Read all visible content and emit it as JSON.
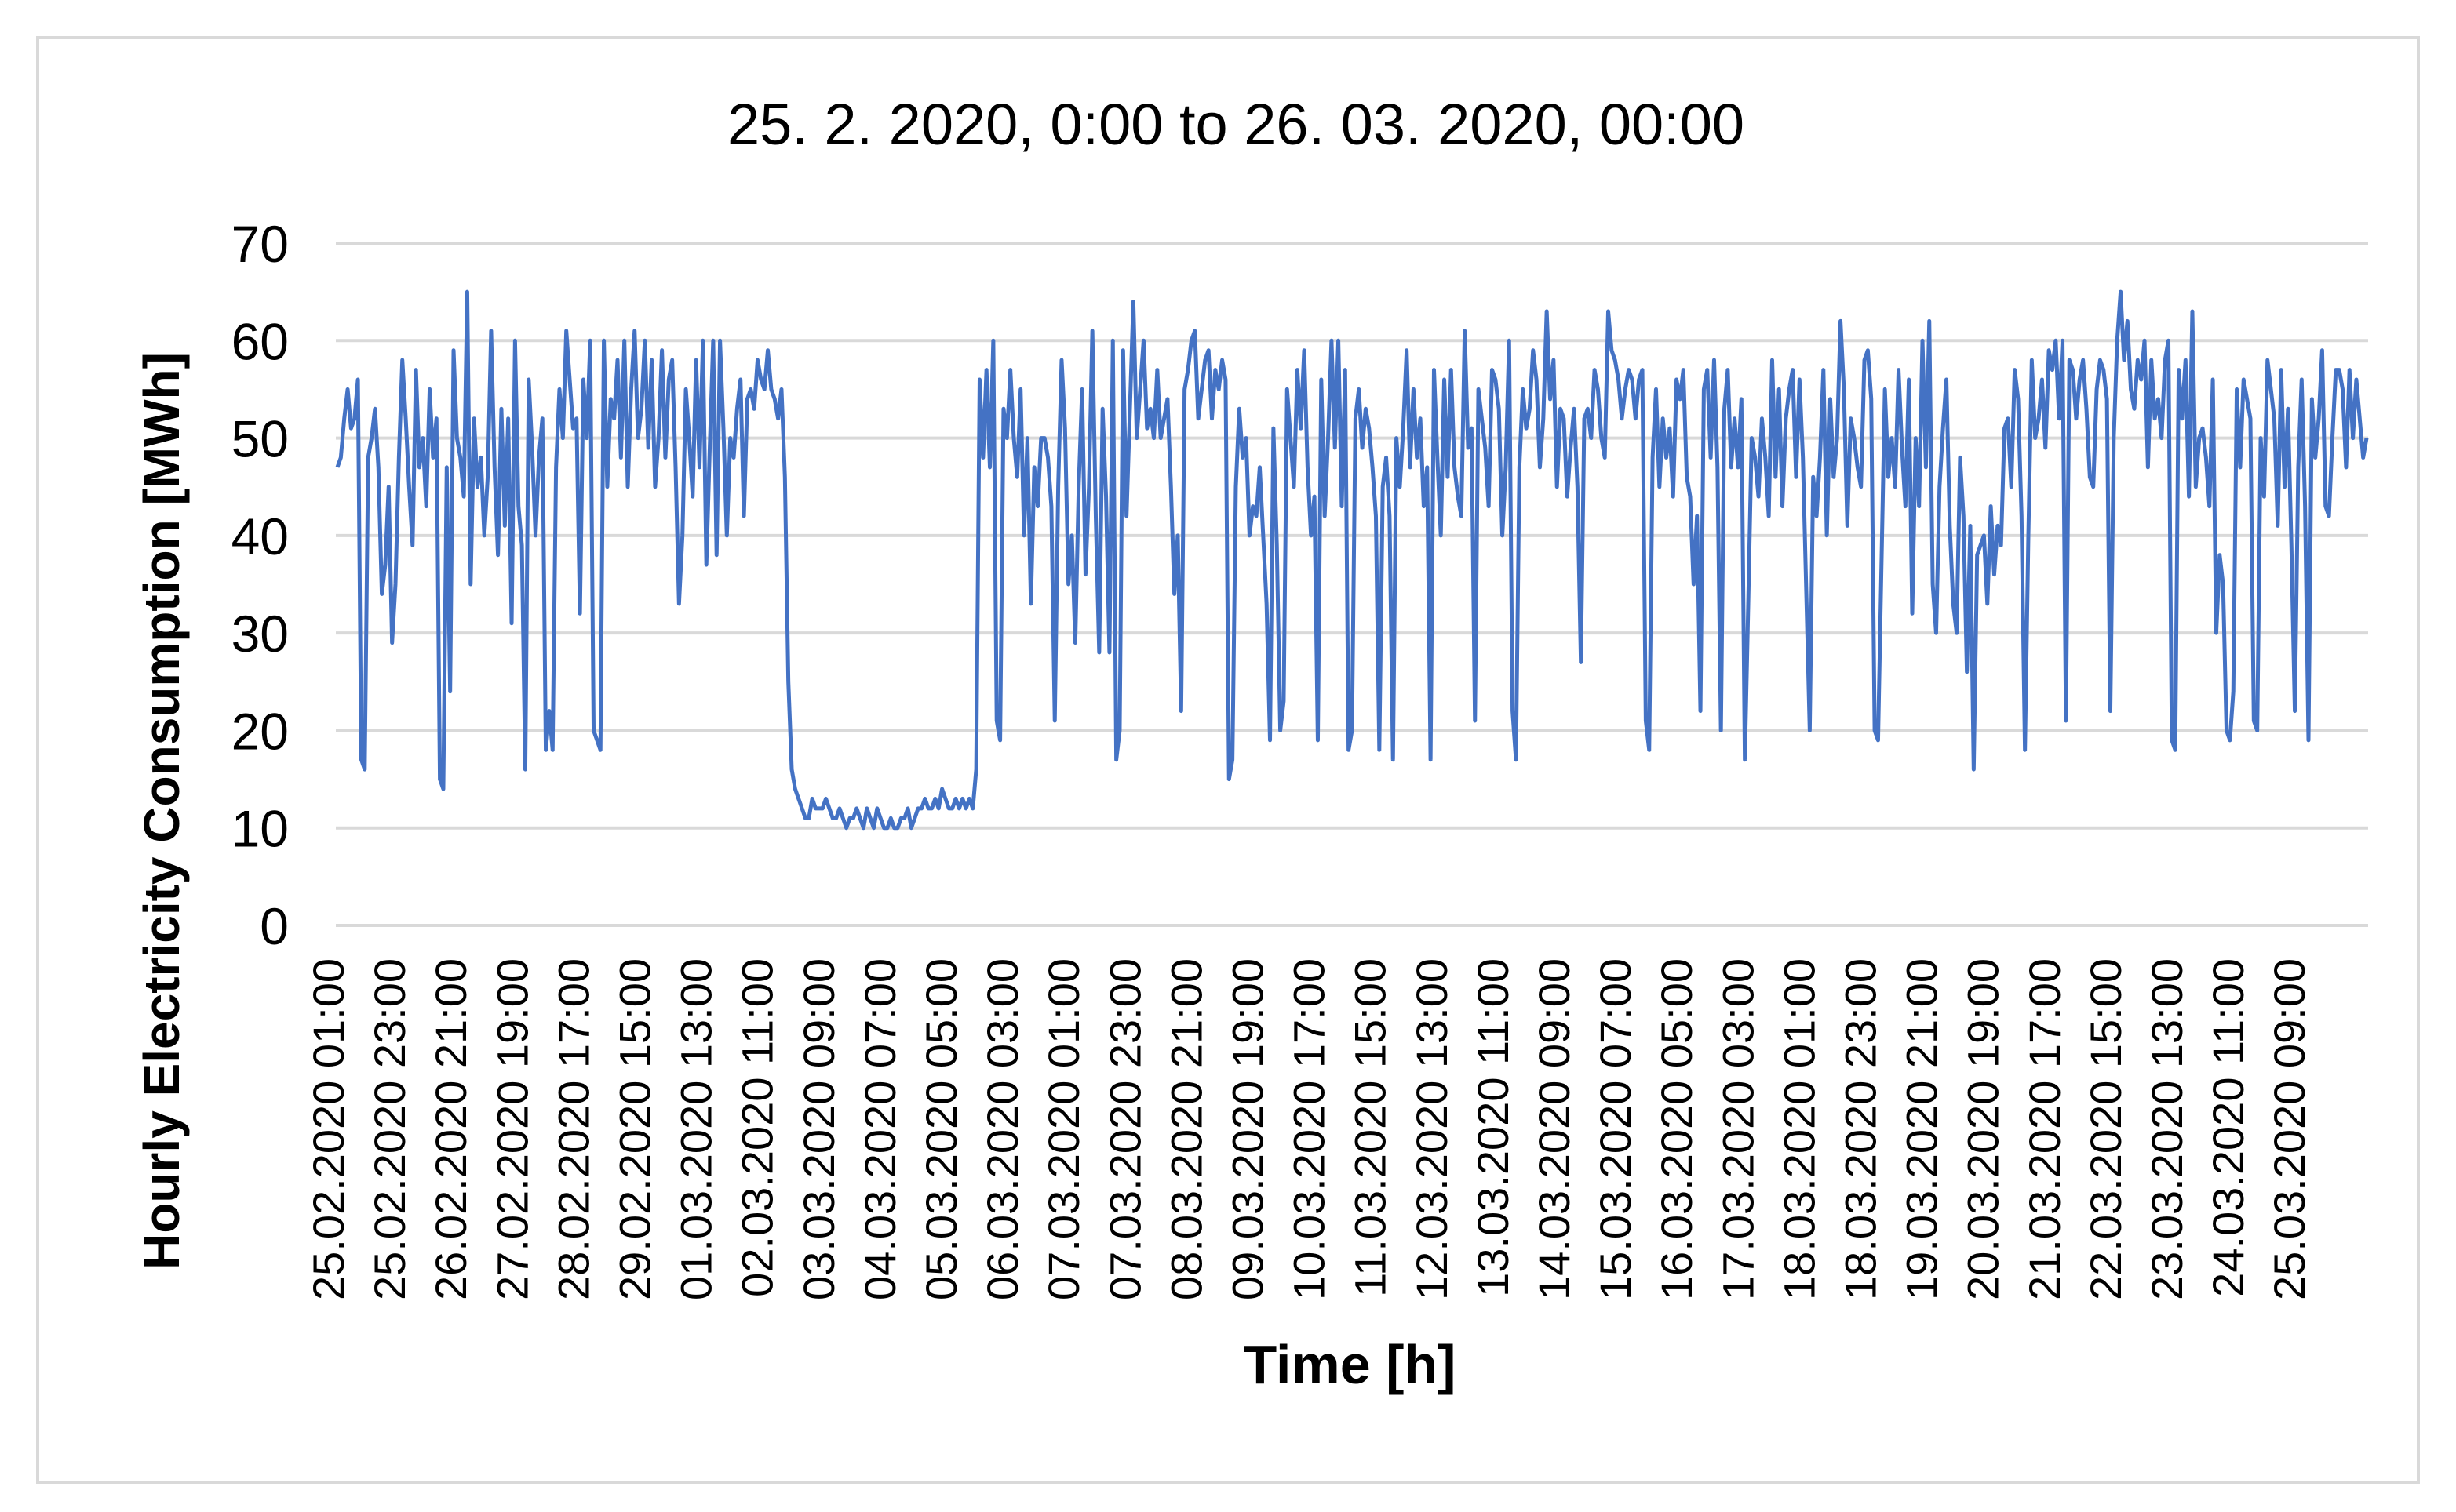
{
  "chart_data": {
    "type": "line",
    "title": "25. 2. 2020, 0:00 to 26. 03. 2020, 00:00",
    "xlabel": "Time [h]",
    "ylabel": "Hourly Electricity Consumption [MWh]",
    "ylim": [
      0,
      70
    ],
    "yticks": [
      0,
      10,
      20,
      30,
      40,
      50,
      60,
      70
    ],
    "grid": "horizontal",
    "x_start": "25.02.2020 01:00",
    "x_end": "26.03.2020 00:00",
    "xtick_labels": [
      "25.02.2020 01:00",
      "25.02.2020 23:00",
      "26.02.2020 21:00",
      "27.02.2020 19:00",
      "28.02.2020 17:00",
      "29.02.2020 15:00",
      "01.03.2020 13:00",
      "02.03.2020 11:00",
      "03.03.2020 09:00",
      "04.03.2020 07:00",
      "05.03.2020 05:00",
      "06.03.2020 03:00",
      "07.03.2020 01:00",
      "07.03.2020 23:00",
      "08.03.2020 21:00",
      "09.03.2020 19:00",
      "10.03.2020 17:00",
      "11.03.2020 15:00",
      "12.03.2020 13:00",
      "13.03.2020 11:00",
      "14.03.2020 09:00",
      "15.03.2020 07:00",
      "16.03.2020 05:00",
      "17.03.2020 03:00",
      "18.03.2020 01:00",
      "18.03.2020 23:00",
      "19.03.2020 21:00",
      "20.03.2020 19:00",
      "21.03.2020 17:00",
      "22.03.2020 15:00",
      "23.03.2020 13:00",
      "24.03.2020 11:00",
      "25.03.2020 09:00"
    ],
    "series": [
      {
        "color": "#4472C4",
        "values": [
          47,
          48,
          52,
          55,
          51,
          52,
          56,
          17,
          16,
          48,
          50,
          53,
          47,
          34,
          37,
          45,
          29,
          35,
          48,
          58,
          52,
          45,
          39,
          57,
          47,
          50,
          43,
          55,
          48,
          52,
          15,
          14,
          47,
          24,
          59,
          50,
          48,
          44,
          65,
          35,
          52,
          45,
          48,
          40,
          46,
          61,
          47,
          38,
          53,
          41,
          52,
          31,
          60,
          43,
          39,
          16,
          56,
          49,
          40,
          48,
          52,
          18,
          22,
          18,
          47,
          55,
          50,
          61,
          56,
          51,
          52,
          32,
          56,
          50,
          60,
          20,
          19,
          18,
          60,
          45,
          54,
          52,
          58,
          48,
          60,
          45,
          55,
          61,
          50,
          53,
          60,
          49,
          58,
          45,
          50,
          59,
          48,
          56,
          58,
          47,
          33,
          40,
          55,
          50,
          44,
          58,
          47,
          60,
          37,
          49,
          60,
          38,
          60,
          51,
          40,
          50,
          48,
          53,
          56,
          42,
          54,
          55,
          53,
          58,
          56,
          55,
          59,
          55,
          54,
          52,
          55,
          46,
          25,
          16,
          14,
          13,
          12,
          11,
          11,
          13,
          12,
          12,
          12,
          13,
          12,
          11,
          11,
          12,
          11,
          10,
          11,
          11,
          12,
          11,
          10,
          12,
          11,
          10,
          12,
          11,
          10,
          10,
          11,
          10,
          10,
          11,
          11,
          12,
          10,
          11,
          12,
          12,
          13,
          12,
          12,
          13,
          12,
          14,
          13,
          12,
          12,
          13,
          12,
          13,
          12,
          13,
          12,
          16,
          56,
          48,
          57,
          47,
          60,
          21,
          19,
          53,
          50,
          57,
          50,
          46,
          55,
          40,
          50,
          33,
          47,
          43,
          50,
          50,
          48,
          43,
          21,
          45,
          58,
          51,
          35,
          40,
          29,
          45,
          55,
          36,
          45,
          61,
          42,
          28,
          53,
          44,
          28,
          60,
          17,
          20,
          59,
          42,
          53,
          64,
          50,
          55,
          60,
          51,
          53,
          50,
          57,
          50,
          52,
          54,
          45,
          34,
          40,
          22,
          55,
          57,
          60,
          61,
          52,
          55,
          58,
          59,
          52,
          57,
          55,
          58,
          56,
          15,
          17,
          45,
          53,
          48,
          50,
          40,
          43,
          42,
          47,
          40,
          33,
          19,
          51,
          39,
          20,
          23,
          55,
          50,
          45,
          57,
          51,
          59,
          47,
          40,
          44,
          19,
          56,
          42,
          50,
          60,
          49,
          60,
          43,
          57,
          18,
          20,
          52,
          55,
          49,
          53,
          51,
          47,
          42,
          18,
          45,
          48,
          42,
          17,
          50,
          45,
          51,
          59,
          47,
          55,
          48,
          52,
          43,
          47,
          17,
          57,
          48,
          40,
          56,
          46,
          57,
          47,
          44,
          42,
          61,
          49,
          51,
          21,
          55,
          52,
          49,
          43,
          57,
          56,
          53,
          40,
          47,
          60,
          22,
          17,
          47,
          55,
          51,
          53,
          59,
          56,
          47,
          52,
          63,
          54,
          58,
          45,
          53,
          52,
          44,
          49,
          53,
          45,
          27,
          52,
          53,
          50,
          57,
          55,
          50,
          48,
          63,
          59,
          58,
          56,
          52,
          55,
          57,
          56,
          52,
          56,
          57,
          21,
          18,
          48,
          55,
          45,
          52,
          48,
          51,
          44,
          56,
          54,
          57,
          46,
          44,
          35,
          42,
          22,
          55,
          57,
          48,
          58,
          47,
          20,
          53,
          57,
          47,
          52,
          47,
          54,
          17,
          33,
          50,
          48,
          44,
          52,
          48,
          42,
          58,
          46,
          55,
          43,
          52,
          55,
          57,
          46,
          56,
          48,
          34,
          20,
          46,
          42,
          48,
          57,
          40,
          54,
          46,
          50,
          62,
          55,
          41,
          52,
          50,
          47,
          45,
          58,
          59,
          54,
          20,
          19,
          37,
          55,
          46,
          50,
          45,
          57,
          49,
          43,
          56,
          32,
          50,
          43,
          60,
          47,
          62,
          35,
          30,
          45,
          51,
          56,
          41,
          33,
          30,
          48,
          42,
          26,
          41,
          16,
          38,
          39,
          40,
          33,
          43,
          36,
          41,
          39,
          51,
          52,
          45,
          57,
          54,
          42,
          18,
          40,
          58,
          50,
          52,
          56,
          49,
          59,
          57,
          60,
          52,
          60,
          21,
          58,
          57,
          52,
          56,
          58,
          53,
          46,
          45,
          55,
          58,
          57,
          54,
          22,
          50,
          60,
          65,
          58,
          62,
          55,
          53,
          58,
          56,
          60,
          47,
          58,
          52,
          54,
          50,
          58,
          60,
          19,
          18,
          57,
          52,
          58,
          44,
          63,
          45,
          50,
          51,
          48,
          43,
          56,
          30,
          38,
          35,
          20,
          19,
          24,
          55,
          47,
          56,
          54,
          52,
          21,
          20,
          50,
          44,
          58,
          55,
          52,
          41,
          57,
          45,
          53,
          39,
          22,
          47,
          56,
          43,
          19,
          54,
          48,
          52,
          59,
          43,
          42,
          50,
          57,
          57,
          55,
          47,
          57,
          50,
          56,
          52,
          48,
          50
        ]
      }
    ]
  }
}
